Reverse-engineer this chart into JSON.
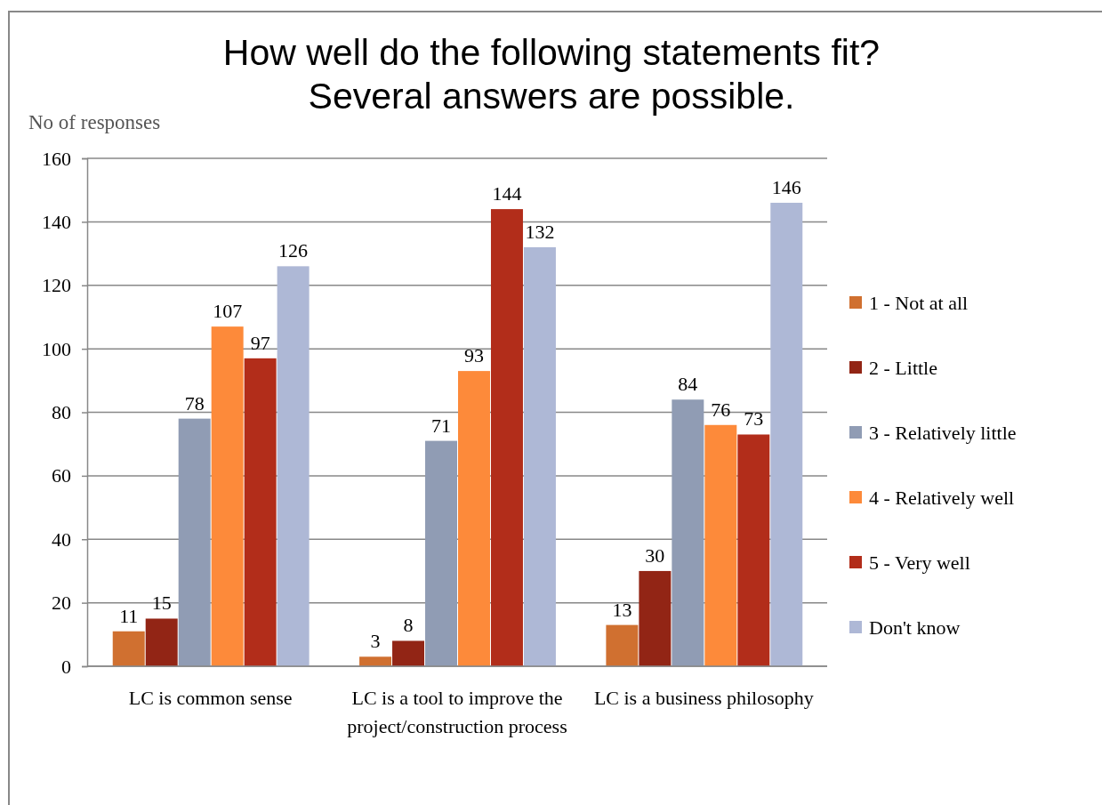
{
  "chart_data": {
    "type": "bar",
    "title": "How well do the following statements fit?\nSeveral answers are possible.",
    "ylabel": "No of responses",
    "categories": [
      "LC is common sense",
      "LC is a tool to improve the project/construction process",
      "LC is a business philosophy"
    ],
    "series": [
      {
        "name": "1 - Not at all",
        "color": "#d07030",
        "values": [
          11,
          3,
          13
        ]
      },
      {
        "name": "2 - Little",
        "color": "#922515",
        "values": [
          15,
          8,
          30
        ]
      },
      {
        "name": "3 - Relatively little",
        "color": "#909cb4",
        "values": [
          78,
          71,
          84
        ]
      },
      {
        "name": "4 - Relatively well",
        "color": "#fd8a3a",
        "values": [
          107,
          93,
          76
        ]
      },
      {
        "name": "5 - Very well",
        "color": "#b22d1a",
        "values": [
          97,
          144,
          73
        ]
      },
      {
        "name": "Don't know",
        "color": "#aeb8d6",
        "values": [
          126,
          132,
          146
        ]
      }
    ],
    "ylim": [
      0,
      160
    ],
    "yticks": [
      0,
      20,
      40,
      60,
      80,
      100,
      120,
      140,
      160
    ],
    "grid": "y",
    "legend": "right",
    "data_labels": true
  }
}
